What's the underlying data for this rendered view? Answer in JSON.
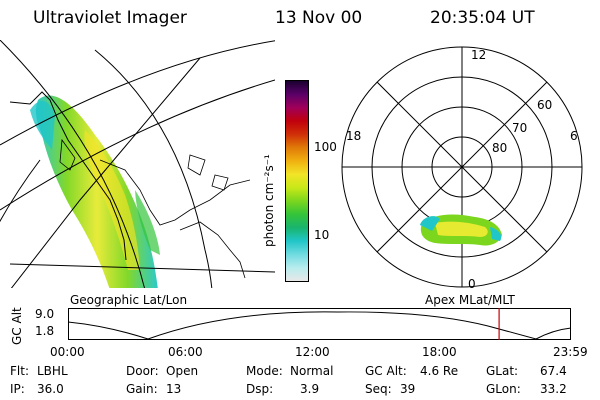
{
  "header": {
    "instrument": "Ultraviolet Imager",
    "date": "13 Nov 00",
    "time": "20:35:04 UT"
  },
  "colorbar": {
    "unit_label": "photon cm⁻²s⁻¹",
    "ticks": [
      "100",
      "10"
    ],
    "scale": "log",
    "colors": [
      "#e8e8e8",
      "#b8ecee",
      "#6fdbe0",
      "#21c6c8",
      "#19b46e",
      "#34c43a",
      "#7cd61e",
      "#c8e818",
      "#f2e428",
      "#f0b010",
      "#e07a08",
      "#d03008",
      "#c0000c",
      "#a0005a",
      "#5a0068",
      "#1a0030"
    ]
  },
  "map_left": {
    "label": "Geographic Lat/Lon"
  },
  "map_right": {
    "label": "Apex MLat/MLT",
    "mlt_labels": {
      "top": "12",
      "left": "18",
      "right": "6",
      "bottom": "0"
    },
    "mlat_labels": [
      "60",
      "70",
      "80"
    ]
  },
  "timeline": {
    "ylabel": "GC Alt",
    "yticks": [
      "9.0",
      "1.8"
    ],
    "xticks": [
      "00:00",
      "06:00",
      "12:00",
      "18:00",
      "23:59"
    ],
    "current_time_fraction": 0.857,
    "marker_color": "#cc0000"
  },
  "status": {
    "flt_label": "Flt:",
    "flt_value": "LBHL",
    "ip_label": "IP:",
    "ip_value": "36.0",
    "door_label": "Door:",
    "door_value": "Open",
    "gain_label": "Gain:",
    "gain_value": "13",
    "mode_label": "Mode:",
    "mode_value": "Normal",
    "dsp_label": "Dsp:",
    "dsp_value": "3.9",
    "gcalt_label": "GC Alt:",
    "gcalt_value": "4.6 Re",
    "seq_label": "Seq:",
    "seq_value": "39",
    "glat_label": "GLat:",
    "glat_value": "67.4",
    "glon_label": "GLon:",
    "glon_value": "33.2"
  }
}
